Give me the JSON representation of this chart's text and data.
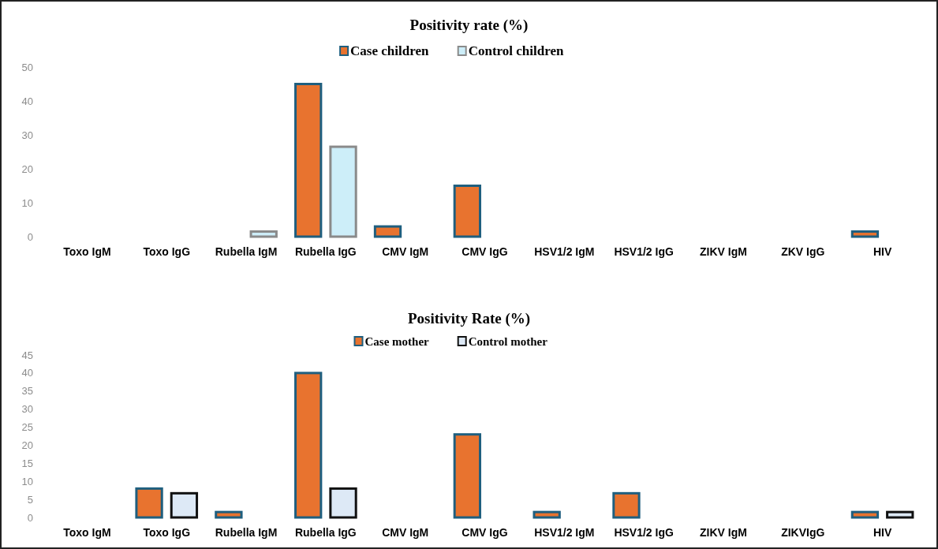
{
  "chart_data": [
    {
      "type": "bar",
      "title": "Positivity rate (%)",
      "categories": [
        "Toxo IgM",
        "Toxo IgG",
        "Rubella  IgM",
        "Rubella  IgG",
        "CMV IgM",
        "CMV IgG",
        "HSV1/2 IgM",
        "HSV1/2 IgG",
        "ZIKV IgM",
        "ZKV IgG",
        "HIV"
      ],
      "series": [
        {
          "name": "Case children",
          "color": "#e8732f",
          "values": [
            0,
            0,
            0,
            45,
            3,
            15,
            0,
            0,
            0,
            0,
            1.5
          ]
        },
        {
          "name": "Control children",
          "color": "#cdeef9",
          "values": [
            0,
            0,
            1.5,
            26.5,
            0,
            0,
            0,
            0,
            0,
            0,
            0
          ]
        }
      ],
      "ylim": [
        0,
        50
      ],
      "yticks": [
        0,
        10,
        20,
        30,
        40,
        50
      ],
      "legend": "top"
    },
    {
      "type": "bar",
      "title": "Positivity Rate (%)",
      "categories": [
        "Toxo IgM",
        "Toxo IgG",
        "Rubella IgM",
        "Rubella IgG",
        "CMV IgM",
        "CMV IgG",
        "HSV1/2 IgM",
        "HSV1/2 IgG",
        "ZIKV IgM",
        "ZIKVIgG",
        "HIV"
      ],
      "series": [
        {
          "name": "Case mother",
          "color": "#e8732f",
          "values": [
            0,
            8,
            1.5,
            40,
            0,
            23,
            1.5,
            6.7,
            0,
            0,
            1.5
          ]
        },
        {
          "name": "Control mother",
          "color": "#dde9f6",
          "values": [
            0,
            6.7,
            0,
            8,
            0,
            0,
            0,
            0,
            0,
            0,
            1.5
          ]
        }
      ],
      "ylim": [
        0,
        45
      ],
      "yticks": [
        0,
        5,
        10,
        15,
        20,
        25,
        30,
        35,
        40,
        45
      ],
      "legend": "top"
    }
  ]
}
